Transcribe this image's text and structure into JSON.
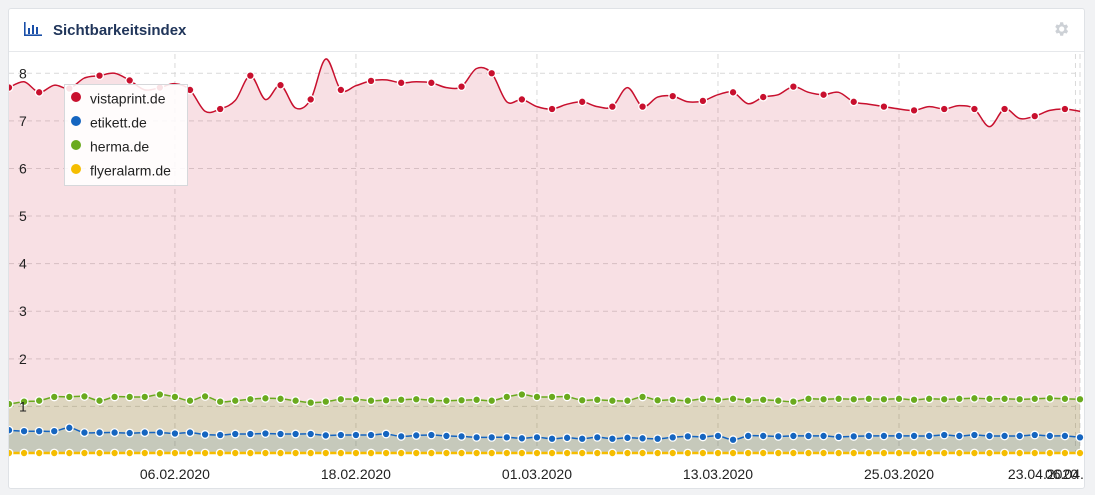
{
  "widget": {
    "title": "Sichtbarkeitsindex",
    "icons": {
      "chart": "bar-chart-icon",
      "settings": "gear-icon"
    }
  },
  "colors": {
    "vistaprint": "#c8102e",
    "etikett": "#1565c0",
    "herma": "#6aaa1e",
    "flyeralarm": "#f5bd00"
  },
  "chart_data": {
    "type": "area",
    "title": "",
    "xlabel": "",
    "ylabel": "",
    "ylim": [
      0,
      8.3
    ],
    "yticks": [
      1,
      2,
      3,
      4,
      5,
      6,
      7,
      8
    ],
    "x_start": "26.01.2020",
    "x_end": "23.04.2020",
    "xtick_labels": [
      "06.02.2020",
      "18.02.2020",
      "01.03.2020",
      "13.03.2020",
      "25.03.2020",
      "06.04.2020",
      "23.04.2020"
    ],
    "grid": true,
    "legend_position": "top-left",
    "series": [
      {
        "name": "vistaprint.de",
        "values": [
          7.7,
          7.82,
          7.6,
          7.75,
          7.68,
          7.9,
          7.95,
          8.0,
          7.85,
          7.65,
          7.7,
          7.78,
          7.65,
          7.2,
          7.25,
          7.43,
          7.95,
          7.45,
          7.75,
          7.27,
          7.45,
          8.3,
          7.65,
          7.74,
          7.84,
          7.86,
          7.8,
          7.82,
          7.8,
          7.7,
          7.72,
          8.1,
          8.0,
          7.4,
          7.45,
          7.3,
          7.25,
          7.35,
          7.4,
          7.3,
          7.3,
          7.7,
          7.3,
          7.5,
          7.52,
          7.4,
          7.42,
          7.55,
          7.6,
          7.36,
          7.5,
          7.55,
          7.72,
          7.6,
          7.55,
          7.6,
          7.4,
          7.35,
          7.3,
          7.25,
          7.22,
          7.3,
          7.25,
          7.32,
          7.25,
          6.88,
          7.25,
          7.05,
          7.1,
          7.22,
          7.25,
          7.2
        ]
      },
      {
        "name": "etikett.de",
        "values": [
          0.5,
          0.48,
          0.48,
          0.48,
          0.55,
          0.45,
          0.45,
          0.45,
          0.44,
          0.45,
          0.45,
          0.43,
          0.45,
          0.41,
          0.4,
          0.42,
          0.42,
          0.43,
          0.42,
          0.42,
          0.42,
          0.39,
          0.4,
          0.4,
          0.4,
          0.42,
          0.37,
          0.39,
          0.4,
          0.38,
          0.37,
          0.35,
          0.35,
          0.35,
          0.33,
          0.35,
          0.32,
          0.34,
          0.32,
          0.35,
          0.32,
          0.34,
          0.33,
          0.32,
          0.35,
          0.37,
          0.36,
          0.38,
          0.3,
          0.38,
          0.38,
          0.37,
          0.38,
          0.38,
          0.38,
          0.36,
          0.37,
          0.38,
          0.38,
          0.38,
          0.38,
          0.38,
          0.4,
          0.38,
          0.4,
          0.38,
          0.38,
          0.38,
          0.4,
          0.38,
          0.38,
          0.35
        ]
      },
      {
        "name": "herma.de",
        "values": [
          1.05,
          1.1,
          1.12,
          1.2,
          1.2,
          1.21,
          1.12,
          1.2,
          1.2,
          1.2,
          1.25,
          1.2,
          1.12,
          1.21,
          1.1,
          1.12,
          1.15,
          1.17,
          1.16,
          1.12,
          1.08,
          1.1,
          1.15,
          1.15,
          1.12,
          1.13,
          1.14,
          1.15,
          1.13,
          1.12,
          1.13,
          1.14,
          1.12,
          1.2,
          1.25,
          1.2,
          1.2,
          1.2,
          1.13,
          1.14,
          1.12,
          1.12,
          1.2,
          1.13,
          1.14,
          1.12,
          1.16,
          1.14,
          1.16,
          1.13,
          1.14,
          1.12,
          1.1,
          1.16,
          1.15,
          1.16,
          1.15,
          1.16,
          1.15,
          1.16,
          1.14,
          1.16,
          1.15,
          1.16,
          1.17,
          1.16,
          1.16,
          1.15,
          1.16,
          1.17,
          1.16,
          1.15
        ]
      },
      {
        "name": "flyeralarm.de",
        "values": [
          0.02,
          0.02,
          0.02,
          0.02,
          0.02,
          0.02,
          0.02,
          0.02,
          0.02,
          0.02,
          0.02,
          0.02,
          0.02,
          0.02,
          0.02,
          0.02,
          0.02,
          0.02,
          0.02,
          0.02,
          0.02,
          0.02,
          0.02,
          0.02,
          0.02,
          0.02,
          0.02,
          0.02,
          0.02,
          0.02,
          0.02,
          0.02,
          0.02,
          0.02,
          0.02,
          0.02,
          0.02,
          0.02,
          0.02,
          0.02,
          0.02,
          0.02,
          0.02,
          0.02,
          0.02,
          0.02,
          0.02,
          0.02,
          0.02,
          0.02,
          0.02,
          0.02,
          0.02,
          0.02,
          0.02,
          0.02,
          0.02,
          0.02,
          0.02,
          0.02,
          0.02,
          0.02,
          0.02,
          0.02,
          0.02,
          0.02,
          0.02,
          0.02,
          0.02,
          0.02,
          0.02,
          0.02
        ]
      }
    ]
  }
}
